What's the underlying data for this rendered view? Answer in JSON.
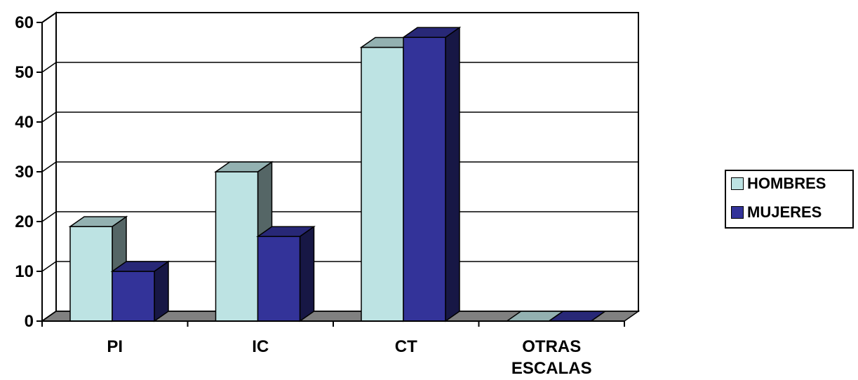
{
  "chart_data": {
    "type": "bar",
    "categories": [
      "PI",
      "IC",
      "CT",
      "OTRAS ESCALAS"
    ],
    "series": [
      {
        "name": "HOMBRES",
        "values": [
          19,
          30,
          55,
          0
        ],
        "color": "#bde3e3"
      },
      {
        "name": "MUJERES",
        "values": [
          10,
          17,
          57,
          0
        ],
        "color": "#333399"
      }
    ],
    "title": "",
    "xlabel": "",
    "ylabel": "",
    "ylim": [
      0,
      60
    ],
    "yticks": [
      0,
      10,
      20,
      30,
      40,
      50,
      60
    ],
    "grid": true,
    "three_d": true,
    "legend_position": "right"
  }
}
